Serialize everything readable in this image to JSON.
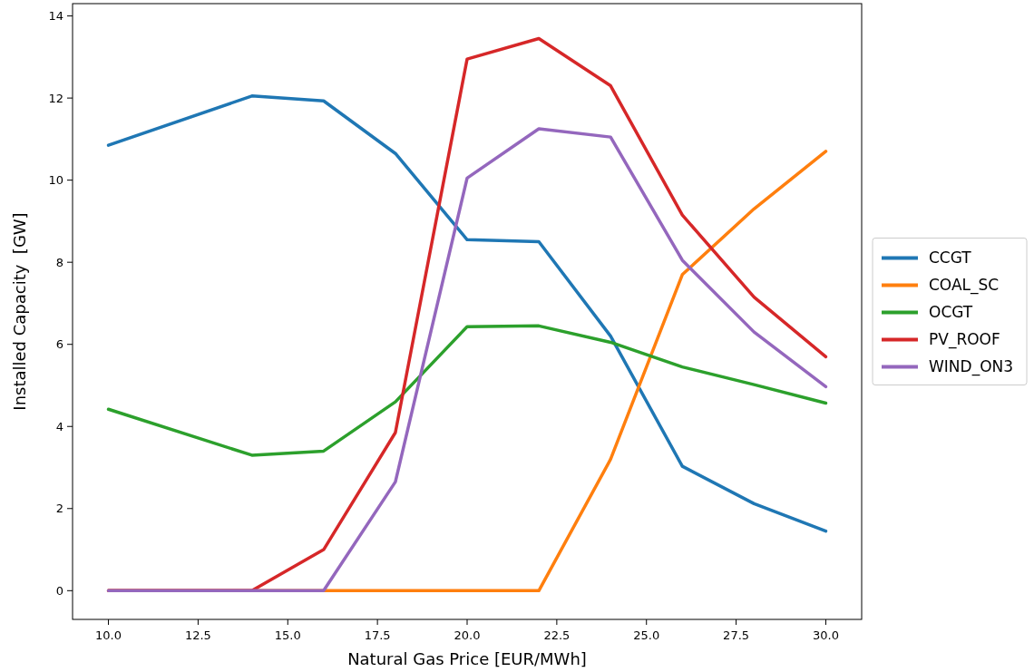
{
  "chart_data": {
    "type": "line",
    "xlabel": "Natural Gas Price [EUR/MWh]",
    "ylabel": "Installed Capacity  [GW]",
    "x": [
      10,
      14,
      16,
      18,
      20,
      22,
      24,
      26,
      28,
      30
    ],
    "xlim": [
      9,
      31
    ],
    "xticks": [
      {
        "value": 10,
        "label": "10.0"
      },
      {
        "value": 12.5,
        "label": "12.5"
      },
      {
        "value": 15,
        "label": "15.0"
      },
      {
        "value": 17.5,
        "label": "17.5"
      },
      {
        "value": 20,
        "label": "20.0"
      },
      {
        "value": 22.5,
        "label": "22.5"
      },
      {
        "value": 25,
        "label": "25.0"
      },
      {
        "value": 27.5,
        "label": "27.5"
      },
      {
        "value": 30,
        "label": "30.0"
      }
    ],
    "ylim": [
      -0.7,
      14.3
    ],
    "yticks": [
      0,
      2,
      4,
      6,
      8,
      10,
      12,
      14
    ],
    "legend": "right",
    "grid": false,
    "marker": "none",
    "line_style": "solid",
    "series": [
      {
        "name": "CCGT",
        "color": "#1f77b4",
        "values": [
          10.85,
          12.05,
          11.93,
          10.65,
          8.55,
          8.5,
          6.2,
          3.03,
          2.12,
          1.45
        ]
      },
      {
        "name": "COAL_SC",
        "color": "#ff7f0e",
        "values": [
          0,
          0,
          0,
          0,
          0,
          0,
          3.2,
          7.7,
          9.3,
          10.7
        ]
      },
      {
        "name": "OCGT",
        "color": "#2ca02c",
        "values": [
          4.42,
          3.3,
          3.4,
          4.6,
          6.43,
          6.45,
          6.05,
          5.45,
          5.02,
          4.57
        ]
      },
      {
        "name": "PV_ROOF",
        "color": "#d62728",
        "values": [
          0,
          0,
          1.0,
          3.85,
          12.95,
          13.45,
          12.3,
          9.15,
          7.15,
          5.7
        ]
      },
      {
        "name": "WIND_ON3",
        "color": "#9467bd",
        "values": [
          0,
          0,
          0,
          2.65,
          10.05,
          11.25,
          11.05,
          8.05,
          6.3,
          4.97
        ]
      }
    ]
  }
}
